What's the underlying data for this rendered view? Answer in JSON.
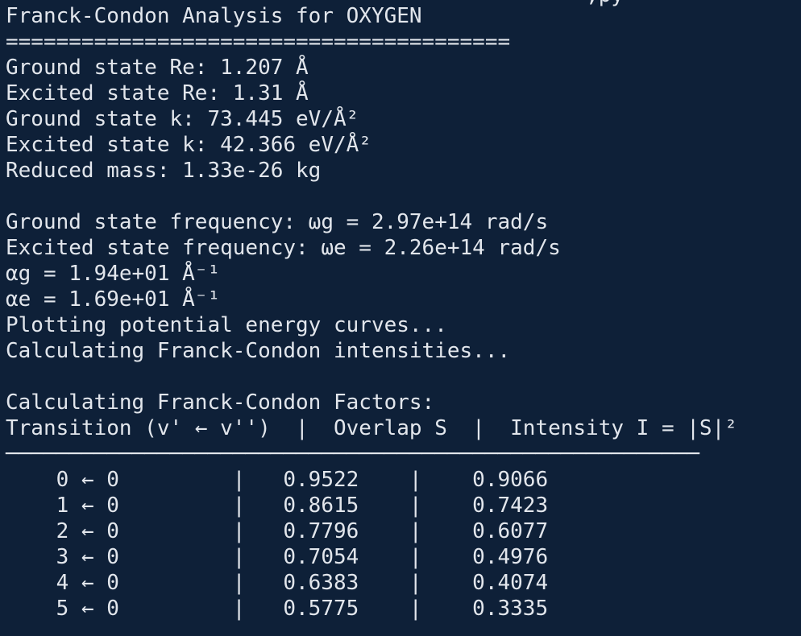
{
  "clipped_top_line": "                                              ,py",
  "title": "Franck-Condon Analysis for OXYGEN",
  "title_rule": "========================================",
  "params": [
    "Ground state Re: 1.207 Å",
    "Excited state Re: 1.31 Å",
    "Ground state k: 73.445 eV/Å²",
    "Excited state k: 42.366 eV/Å²",
    "Reduced mass: 1.33e-26 kg"
  ],
  "freqs": [
    "Ground state frequency: ωg = 2.97e+14 rad/s",
    "Excited state frequency: ωe = 2.26e+14 rad/s",
    "αg = 1.94e+01 Å⁻¹",
    "αe = 1.69e+01 Å⁻¹",
    "Plotting potential energy curves...",
    "Calculating Franck-Condon intensities..."
  ],
  "fcf_heading": "Calculating Franck-Condon Factors:",
  "table_header": "Transition (v' ← v'')  |  Overlap S  |  Intensity I = |S|²",
  "table_rule": "───────────────────────────────────────────────────────",
  "rows": [
    "    0 ← 0         |   0.9522    |    0.9066",
    "    1 ← 0         |   0.8615    |    0.7423",
    "    2 ← 0         |   0.7796    |    0.6077",
    "    3 ← 0         |   0.7054    |    0.4976",
    "    4 ← 0         |   0.6383    |    0.4074",
    "    5 ← 0         |   0.5775    |    0.3335"
  ]
}
